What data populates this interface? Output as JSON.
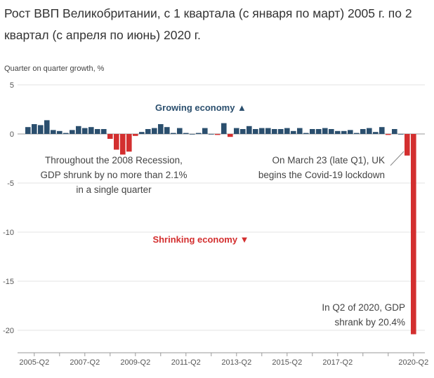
{
  "title": "Рост ВВП Великобритании, с 1 квартала (с января по март) 2005 г. по 2 квартал (с апреля по июнь) 2020 г.",
  "chart_data": {
    "type": "bar",
    "ylabel": "Quarter on quarter growth, %",
    "xlabel": "",
    "ylim": [
      -21,
      5
    ],
    "yticks": [
      5,
      0,
      -5,
      -10,
      -15,
      -20
    ],
    "xtick_labels": [
      "2005-Q2",
      "2007-Q2",
      "2009-Q2",
      "2011-Q2",
      "2013-Q2",
      "2015-Q2",
      "2017-Q2",
      "2020-Q2"
    ],
    "categories": [
      "2005-Q1",
      "2005-Q2",
      "2005-Q3",
      "2005-Q4",
      "2006-Q1",
      "2006-Q2",
      "2006-Q3",
      "2006-Q4",
      "2007-Q1",
      "2007-Q2",
      "2007-Q3",
      "2007-Q4",
      "2008-Q1",
      "2008-Q2",
      "2008-Q3",
      "2008-Q4",
      "2009-Q1",
      "2009-Q2",
      "2009-Q3",
      "2009-Q4",
      "2010-Q1",
      "2010-Q2",
      "2010-Q3",
      "2010-Q4",
      "2011-Q1",
      "2011-Q2",
      "2011-Q3",
      "2011-Q4",
      "2012-Q1",
      "2012-Q2",
      "2012-Q3",
      "2012-Q4",
      "2013-Q1",
      "2013-Q2",
      "2013-Q3",
      "2013-Q4",
      "2014-Q1",
      "2014-Q2",
      "2014-Q3",
      "2014-Q4",
      "2015-Q1",
      "2015-Q2",
      "2015-Q3",
      "2015-Q4",
      "2016-Q1",
      "2016-Q2",
      "2016-Q3",
      "2016-Q4",
      "2017-Q1",
      "2017-Q2",
      "2017-Q3",
      "2017-Q4",
      "2018-Q1",
      "2018-Q2",
      "2018-Q3",
      "2018-Q4",
      "2019-Q1",
      "2019-Q2",
      "2019-Q3",
      "2019-Q4",
      "2020-Q1",
      "2020-Q2"
    ],
    "values": [
      0.7,
      1.0,
      0.9,
      1.4,
      0.4,
      0.3,
      0.1,
      0.4,
      0.8,
      0.6,
      0.7,
      0.5,
      0.5,
      -0.5,
      -1.6,
      -2.1,
      -1.8,
      -0.2,
      0.2,
      0.5,
      0.6,
      1.0,
      0.7,
      0.1,
      0.6,
      0.1,
      0.0,
      0.1,
      0.6,
      0.0,
      -0.1,
      1.1,
      -0.3,
      0.6,
      0.5,
      0.8,
      0.5,
      0.6,
      0.6,
      0.5,
      0.5,
      0.6,
      0.3,
      0.6,
      0.1,
      0.5,
      0.5,
      0.6,
      0.5,
      0.3,
      0.3,
      0.4,
      0.1,
      0.5,
      0.6,
      0.2,
      0.7,
      -0.1,
      0.5,
      0.0,
      -2.2,
      -20.4
    ],
    "colors": {
      "positive": "#2b4f6e",
      "negative": "#d32f2f"
    },
    "labels": {
      "growing": "Growing economy ▲",
      "shrinking": "Shrinking economy ▼",
      "recession": [
        "Throughout the 2008 Recession,",
        "GDP shrunk by no more than 2.1%",
        "in a single quarter"
      ],
      "lockdown": [
        "On March 23 (late Q1), UK",
        "begins the Covid-19 lockdown"
      ],
      "q2_2020": [
        "In Q2 of 2020, GDP",
        "shrank by 20.4%"
      ]
    },
    "grid": true
  }
}
